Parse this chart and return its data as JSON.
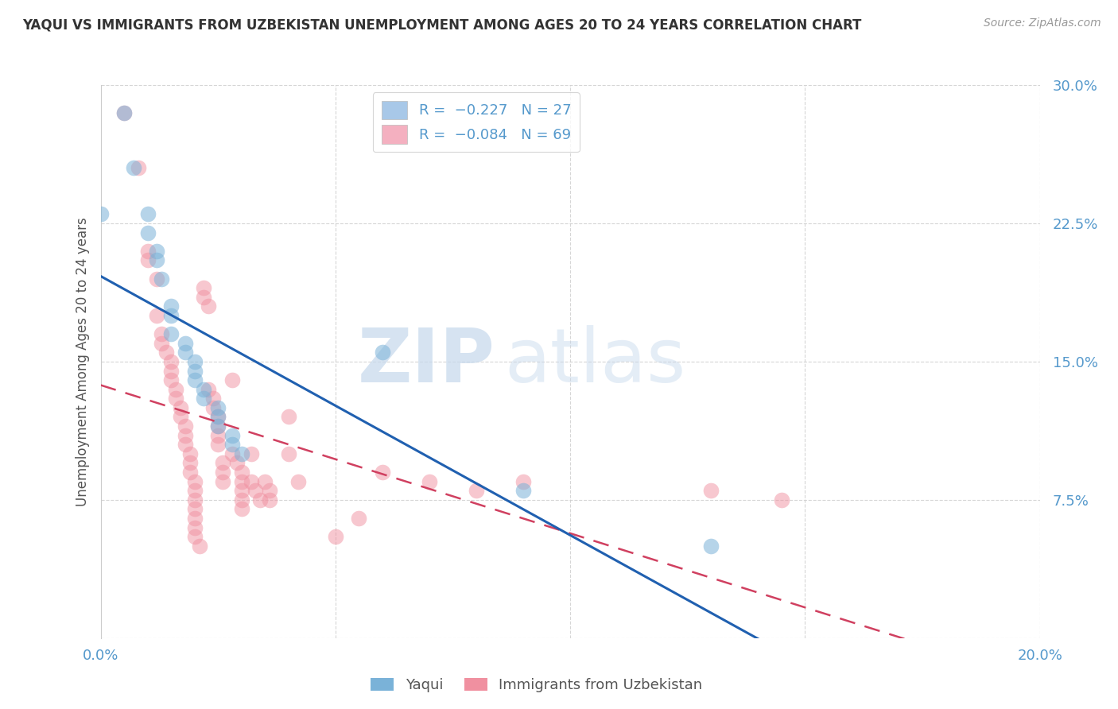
{
  "title": "YAQUI VS IMMIGRANTS FROM UZBEKISTAN UNEMPLOYMENT AMONG AGES 20 TO 24 YEARS CORRELATION CHART",
  "source": "Source: ZipAtlas.com",
  "ylabel": "Unemployment Among Ages 20 to 24 years",
  "xlim": [
    0.0,
    0.2
  ],
  "ylim": [
    0.0,
    0.3
  ],
  "ytick_positions": [
    0.0,
    0.075,
    0.15,
    0.225,
    0.3
  ],
  "ytick_labels": [
    "",
    "7.5%",
    "15.0%",
    "22.5%",
    "30.0%"
  ],
  "xtick_positions": [
    0.0,
    0.05,
    0.1,
    0.15,
    0.2
  ],
  "xtick_labels": [
    "0.0%",
    "",
    "",
    "",
    "20.0%"
  ],
  "yaqui_color": "#7ab2d8",
  "uzbek_color": "#f090a0",
  "yaqui_line_color": "#2060b0",
  "uzbek_line_color": "#d04060",
  "legend_yaqui_color": "#a8c8e8",
  "legend_uzbek_color": "#f4b0c0",
  "tick_color": "#5599cc",
  "grid_color": "#cccccc",
  "background_color": "#ffffff",
  "watermark_zip": "ZIP",
  "watermark_atlas": "atlas",
  "title_fontsize": 12,
  "source_fontsize": 10,
  "yaqui_points": [
    [
      0.0,
      0.23
    ],
    [
      0.005,
      0.285
    ],
    [
      0.007,
      0.255
    ],
    [
      0.01,
      0.23
    ],
    [
      0.01,
      0.22
    ],
    [
      0.012,
      0.21
    ],
    [
      0.012,
      0.205
    ],
    [
      0.013,
      0.195
    ],
    [
      0.015,
      0.18
    ],
    [
      0.015,
      0.175
    ],
    [
      0.015,
      0.165
    ],
    [
      0.018,
      0.16
    ],
    [
      0.018,
      0.155
    ],
    [
      0.02,
      0.15
    ],
    [
      0.02,
      0.145
    ],
    [
      0.02,
      0.14
    ],
    [
      0.022,
      0.135
    ],
    [
      0.022,
      0.13
    ],
    [
      0.025,
      0.125
    ],
    [
      0.025,
      0.12
    ],
    [
      0.025,
      0.115
    ],
    [
      0.028,
      0.11
    ],
    [
      0.028,
      0.105
    ],
    [
      0.03,
      0.1
    ],
    [
      0.06,
      0.155
    ],
    [
      0.09,
      0.08
    ],
    [
      0.13,
      0.05
    ]
  ],
  "uzbek_points": [
    [
      0.005,
      0.285
    ],
    [
      0.008,
      0.255
    ],
    [
      0.01,
      0.21
    ],
    [
      0.01,
      0.205
    ],
    [
      0.012,
      0.195
    ],
    [
      0.012,
      0.175
    ],
    [
      0.013,
      0.165
    ],
    [
      0.013,
      0.16
    ],
    [
      0.014,
      0.155
    ],
    [
      0.015,
      0.15
    ],
    [
      0.015,
      0.145
    ],
    [
      0.015,
      0.14
    ],
    [
      0.016,
      0.135
    ],
    [
      0.016,
      0.13
    ],
    [
      0.017,
      0.125
    ],
    [
      0.017,
      0.12
    ],
    [
      0.018,
      0.115
    ],
    [
      0.018,
      0.11
    ],
    [
      0.018,
      0.105
    ],
    [
      0.019,
      0.1
    ],
    [
      0.019,
      0.095
    ],
    [
      0.019,
      0.09
    ],
    [
      0.02,
      0.085
    ],
    [
      0.02,
      0.08
    ],
    [
      0.02,
      0.075
    ],
    [
      0.02,
      0.07
    ],
    [
      0.02,
      0.065
    ],
    [
      0.02,
      0.06
    ],
    [
      0.02,
      0.055
    ],
    [
      0.021,
      0.05
    ],
    [
      0.022,
      0.19
    ],
    [
      0.022,
      0.185
    ],
    [
      0.023,
      0.18
    ],
    [
      0.023,
      0.135
    ],
    [
      0.024,
      0.13
    ],
    [
      0.024,
      0.125
    ],
    [
      0.025,
      0.12
    ],
    [
      0.025,
      0.115
    ],
    [
      0.025,
      0.11
    ],
    [
      0.025,
      0.105
    ],
    [
      0.026,
      0.095
    ],
    [
      0.026,
      0.09
    ],
    [
      0.026,
      0.085
    ],
    [
      0.028,
      0.14
    ],
    [
      0.028,
      0.1
    ],
    [
      0.029,
      0.095
    ],
    [
      0.03,
      0.09
    ],
    [
      0.03,
      0.085
    ],
    [
      0.03,
      0.08
    ],
    [
      0.03,
      0.075
    ],
    [
      0.03,
      0.07
    ],
    [
      0.032,
      0.1
    ],
    [
      0.032,
      0.085
    ],
    [
      0.033,
      0.08
    ],
    [
      0.034,
      0.075
    ],
    [
      0.035,
      0.085
    ],
    [
      0.036,
      0.08
    ],
    [
      0.036,
      0.075
    ],
    [
      0.04,
      0.12
    ],
    [
      0.04,
      0.1
    ],
    [
      0.042,
      0.085
    ],
    [
      0.05,
      0.055
    ],
    [
      0.055,
      0.065
    ],
    [
      0.06,
      0.09
    ],
    [
      0.07,
      0.085
    ],
    [
      0.08,
      0.08
    ],
    [
      0.09,
      0.085
    ],
    [
      0.13,
      0.08
    ],
    [
      0.145,
      0.075
    ]
  ]
}
